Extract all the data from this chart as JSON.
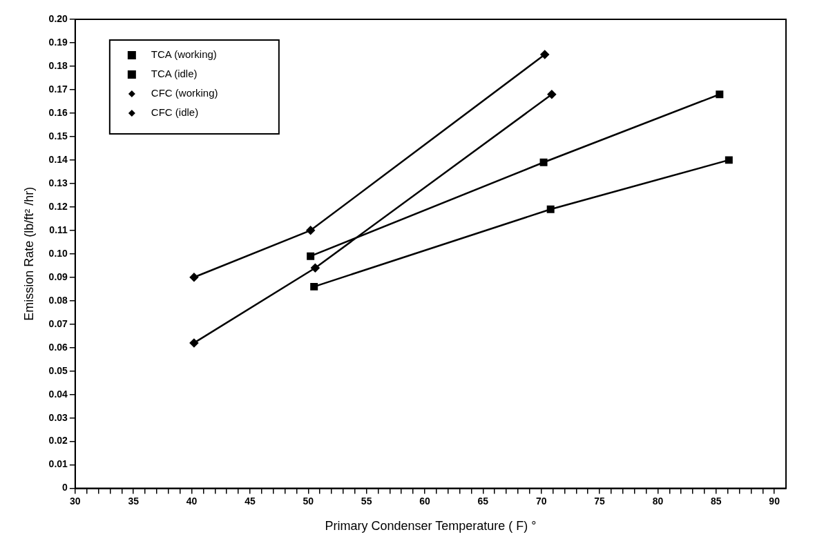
{
  "chart_data": {
    "type": "line",
    "xlabel": "Primary Condenser Temperature ( F) °",
    "ylabel": "Emission Rate (lb/ft² /hr)",
    "legend": "top left",
    "line_style": "solid",
    "xlim": [
      30,
      91
    ],
    "ylim": [
      0,
      0.2
    ],
    "xticks": [
      30,
      {
        "value": 31,
        "label": null
      },
      {
        "value": 32,
        "label": null
      },
      {
        "value": 33,
        "label": null
      },
      {
        "value": 34,
        "label": null
      },
      35,
      {
        "value": 36,
        "label": null
      },
      {
        "value": 37,
        "label": null
      },
      {
        "value": 38,
        "label": null
      },
      {
        "value": 39,
        "label": null
      },
      40,
      {
        "value": 41,
        "label": null
      },
      {
        "value": 42,
        "label": null
      },
      {
        "value": 43,
        "label": null
      },
      {
        "value": 44,
        "label": null
      },
      45,
      {
        "value": 46,
        "label": null
      },
      {
        "value": 47,
        "label": null
      },
      {
        "value": 48,
        "label": null
      },
      {
        "value": 49,
        "label": null
      },
      50,
      {
        "value": 51,
        "label": null
      },
      {
        "value": 52,
        "label": null
      },
      {
        "value": 53,
        "label": null
      },
      {
        "value": 54,
        "label": null
      },
      55,
      {
        "value": 56,
        "label": null
      },
      {
        "value": 57,
        "label": null
      },
      {
        "value": 58,
        "label": null
      },
      {
        "value": 59,
        "label": null
      },
      60,
      {
        "value": 61,
        "label": null
      },
      {
        "value": 62,
        "label": null
      },
      {
        "value": 63,
        "label": null
      },
      {
        "value": 64,
        "label": null
      },
      65,
      {
        "value": 66,
        "label": null
      },
      {
        "value": 67,
        "label": null
      },
      {
        "value": 68,
        "label": null
      },
      {
        "value": 69,
        "label": null
      },
      70,
      {
        "value": 71,
        "label": null
      },
      {
        "value": 72,
        "label": null
      },
      {
        "value": 73,
        "label": null
      },
      {
        "value": 74,
        "label": null
      },
      75,
      {
        "value": 76,
        "label": null
      },
      {
        "value": 77,
        "label": null
      },
      {
        "value": 78,
        "label": null
      },
      {
        "value": 79,
        "label": null
      },
      80,
      {
        "value": 81,
        "label": null
      },
      {
        "value": 82,
        "label": null
      },
      {
        "value": 83,
        "label": null
      },
      {
        "value": 84,
        "label": null
      },
      85,
      {
        "value": 86,
        "label": null
      },
      {
        "value": 87,
        "label": null
      },
      {
        "value": 88,
        "label": null
      },
      {
        "value": 89,
        "label": null
      },
      90
    ],
    "yticks": [
      0,
      0.01,
      0.02,
      0.03,
      0.04,
      0.05,
      0.06,
      0.07,
      0.08,
      0.09,
      {
        "value": 0.1,
        "label": "0.10"
      },
      0.11,
      0.12,
      0.13,
      0.14,
      0.15,
      0.16,
      0.17,
      0.18,
      0.19,
      {
        "value": 0.2,
        "label": "0.20"
      }
    ],
    "series": [
      {
        "name": "TCA (working)",
        "color": "#000000",
        "marker": "square",
        "x": [
          50.2,
          70.2,
          85.3
        ],
        "values": [
          0.099,
          0.139,
          0.168
        ]
      },
      {
        "name": "TCA (idle)",
        "color": "#000000",
        "marker": "square",
        "x": [
          50.5,
          70.8,
          86.1
        ],
        "values": [
          0.086,
          0.119,
          0.14
        ]
      },
      {
        "name": "CFC (working)",
        "color": "#000000",
        "marker": "diamond",
        "x": [
          40.2,
          50.2,
          70.3
        ],
        "values": [
          0.09,
          0.11,
          0.185
        ]
      },
      {
        "name": "CFC (idle)",
        "color": "#000000",
        "marker": "diamond",
        "x": [
          40.2,
          50.6,
          70.9
        ],
        "values": [
          0.062,
          0.094,
          0.168
        ]
      }
    ]
  }
}
